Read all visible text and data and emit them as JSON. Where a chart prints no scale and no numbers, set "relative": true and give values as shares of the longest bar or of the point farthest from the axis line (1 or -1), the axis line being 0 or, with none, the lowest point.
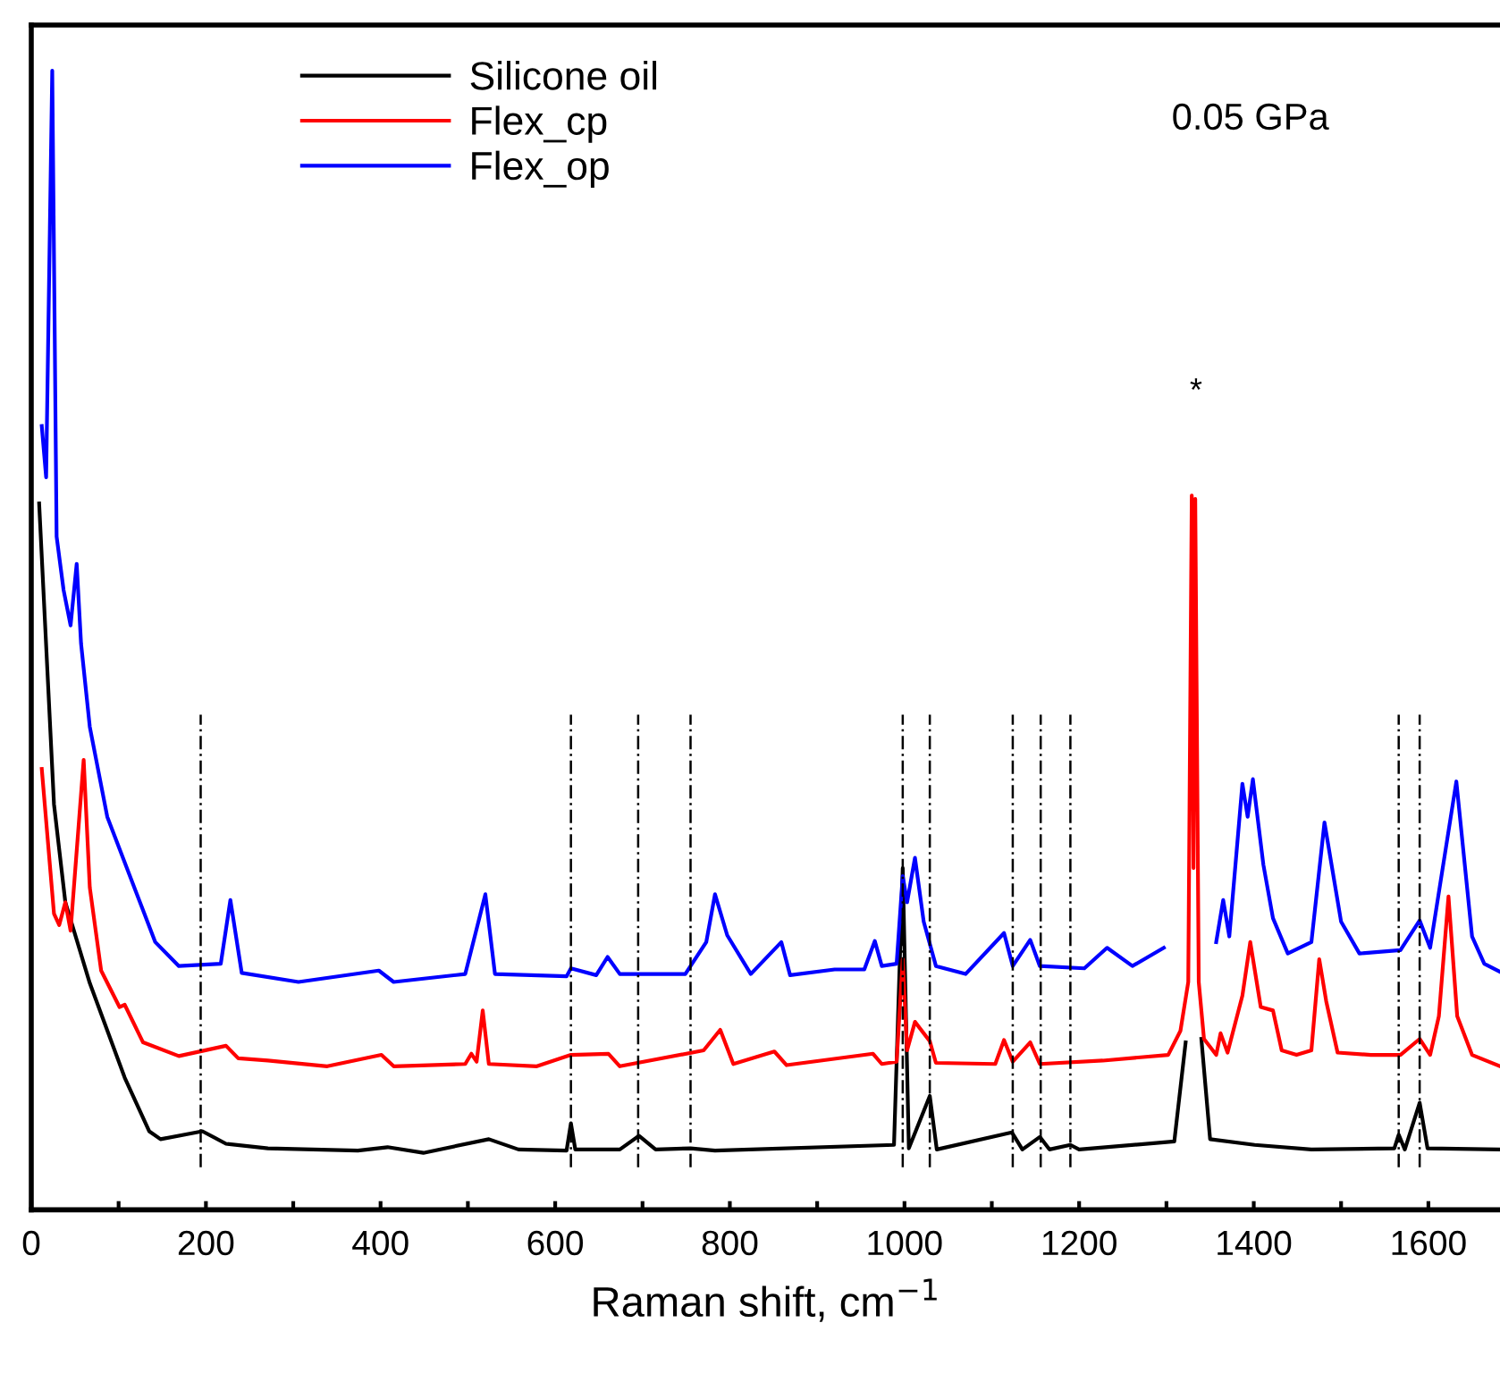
{
  "chart_data": {
    "type": "line",
    "xlabel": "Raman shift, cm$^{−1}$",
    "relative": true,
    "xlim": [
      0,
      1682
    ],
    "xticks": [
      0,
      {
        "value": 100,
        "label": null
      },
      200,
      {
        "value": 300,
        "label": null
      },
      400,
      {
        "value": 500,
        "label": null
      },
      600,
      {
        "value": 700,
        "label": null
      },
      800,
      {
        "value": 900,
        "label": null
      },
      1000,
      {
        "value": 1100,
        "label": null
      },
      1200,
      {
        "value": 1300,
        "label": null
      },
      1400,
      {
        "value": 1500,
        "label": null
      },
      1600
    ],
    "legend": "top left",
    "grid": false,
    "marker": "none",
    "line_style": "solid",
    "annotations": [
      "0.05 GPa",
      "*"
    ],
    "ref_lines": [
      {
        "axis": "x",
        "value": 194,
        "color": "#000000",
        "line_style": "dashed"
      },
      {
        "axis": "x",
        "value": 618,
        "color": "#000000",
        "line_style": "dashed"
      },
      {
        "axis": "x",
        "value": 695,
        "color": "#000000",
        "line_style": "dashed"
      },
      {
        "axis": "x",
        "value": 755,
        "color": "#000000",
        "line_style": "dashed"
      },
      {
        "axis": "x",
        "value": 998,
        "color": "#000000",
        "line_style": "dashed"
      },
      {
        "axis": "x",
        "value": 1029,
        "color": "#000000",
        "line_style": "dashed"
      },
      {
        "axis": "x",
        "value": 1124,
        "color": "#000000",
        "line_style": "dashed"
      },
      {
        "axis": "x",
        "value": 1156,
        "color": "#000000",
        "line_style": "dashed"
      },
      {
        "axis": "x",
        "value": 1190,
        "color": "#000000",
        "line_style": "dashed"
      },
      {
        "axis": "x",
        "value": 1566,
        "color": "#000000",
        "line_style": "dashed"
      },
      {
        "axis": "x",
        "value": 1590,
        "color": "#000000",
        "line_style": "dashed"
      }
    ],
    "series": [
      {
        "name": "Silicone oil",
        "color": "#000000",
        "x": [
          9,
          26,
          39,
          67,
          107,
          135,
          148,
          196,
          223,
          271,
          374,
          408,
          449,
          524,
          558,
          613,
          618,
          623,
          674,
          696,
          715,
          755,
          783,
          988,
          998,
          1005,
          1029,
          1037,
          1123,
          1135,
          1155,
          1166,
          1190,
          1200,
          1309,
          1322,
          1331,
          1340,
          1350,
          1401,
          1466,
          1561,
          1566,
          1573,
          1590,
          1599,
          1682
        ],
        "values": [
          0.62,
          0.356,
          0.27,
          0.199,
          0.116,
          0.069,
          0.062,
          0.069,
          0.058,
          0.054,
          0.052,
          0.055,
          0.05,
          0.062,
          0.053,
          0.052,
          0.076,
          0.053,
          0.053,
          0.065,
          0.053,
          0.054,
          0.052,
          0.057,
          0.3,
          0.054,
          0.1,
          0.053,
          0.068,
          0.053,
          0.064,
          0.053,
          0.057,
          0.053,
          0.06,
          0.147,
          null,
          0.15,
          0.062,
          0.057,
          0.053,
          0.054,
          0.066,
          0.053,
          0.094,
          0.054,
          0.053
        ]
      },
      {
        "name": "Flex_cp",
        "color": "#ff0000",
        "x": [
          12,
          26,
          32,
          39,
          45,
          60,
          67,
          80,
          101,
          107,
          128,
          169,
          223,
          237,
          271,
          339,
          401,
          415,
          497,
          504,
          510,
          517,
          524,
          579,
          618,
          661,
          674,
          770,
          789,
          804,
          851,
          865,
          964,
          974,
          991,
          998,
          1003,
          1012,
          1029,
          1036,
          1104,
          1114,
          1124,
          1144,
          1155,
          1227,
          1302,
          1316,
          1325,
          1329,
          1331,
          1333,
          1337,
          1343,
          1357,
          1362,
          1370,
          1387,
          1396,
          1408,
          1422,
          1432,
          1449,
          1466,
          1475,
          1483,
          1496,
          1534,
          1568,
          1590,
          1602,
          1612,
          1623,
          1633,
          1650,
          1682
        ],
        "values": [
          0.387,
          0.26,
          0.25,
          0.27,
          0.245,
          0.395,
          0.283,
          0.21,
          0.178,
          0.18,
          0.147,
          0.135,
          0.144,
          0.133,
          0.131,
          0.126,
          0.136,
          0.126,
          0.128,
          0.137,
          0.13,
          0.175,
          0.128,
          0.126,
          0.136,
          0.137,
          0.126,
          0.14,
          0.158,
          0.128,
          0.139,
          0.127,
          0.137,
          0.128,
          0.13,
          0.22,
          0.14,
          0.165,
          0.148,
          0.129,
          0.128,
          0.149,
          0.13,
          0.147,
          0.128,
          0.131,
          0.136,
          0.157,
          0.2,
          0.627,
          0.3,
          0.624,
          0.2,
          0.15,
          0.136,
          0.155,
          0.138,
          0.188,
          0.235,
          0.178,
          0.175,
          0.14,
          0.136,
          0.14,
          0.22,
          0.183,
          0.138,
          0.136,
          0.136,
          0.15,
          0.136,
          0.17,
          0.275,
          0.17,
          0.136,
          0.126
        ]
      },
      {
        "name": "Flex_op",
        "color": "#0000ff",
        "x": [
          12,
          17,
          24,
          29,
          37,
          45,
          52,
          57,
          67,
          87,
          121,
          142,
          169,
          217,
          228,
          241,
          306,
          398,
          415,
          497,
          520,
          531,
          613,
          618,
          647,
          660,
          674,
          749,
          773,
          783,
          797,
          824,
          859,
          869,
          920,
          954,
          966,
          974,
          991,
          998,
          1003,
          1012,
          1022,
          1036,
          1070,
          1114,
          1124,
          1144,
          1155,
          1206,
          1232,
          1261,
          1297,
          1327,
          1357,
          1365,
          1372,
          1387,
          1393,
          1399,
          1411,
          1422,
          1439,
          1466,
          1481,
          1500,
          1521,
          1568,
          1590,
          1602,
          1632,
          1650,
          1664,
          1682
        ],
        "values": [
          0.688,
          0.643,
          1.0,
          0.591,
          0.544,
          0.513,
          0.567,
          0.497,
          0.424,
          0.345,
          0.277,
          0.235,
          0.214,
          0.216,
          0.272,
          0.208,
          0.2,
          0.21,
          0.2,
          0.207,
          0.277,
          0.207,
          0.205,
          0.212,
          0.206,
          0.222,
          0.207,
          0.207,
          0.235,
          0.277,
          0.241,
          0.207,
          0.235,
          0.206,
          0.211,
          0.211,
          0.236,
          0.214,
          0.216,
          0.293,
          0.27,
          0.309,
          0.253,
          0.214,
          0.207,
          0.243,
          0.214,
          0.237,
          0.214,
          0.212,
          0.23,
          0.214,
          0.23,
          null,
          0.235,
          0.272,
          0.24,
          0.374,
          0.345,
          0.378,
          0.303,
          0.256,
          0.225,
          0.235,
          0.34,
          0.253,
          0.225,
          0.228,
          0.254,
          0.23,
          0.376,
          0.24,
          0.216,
          0.209
        ]
      }
    ]
  }
}
